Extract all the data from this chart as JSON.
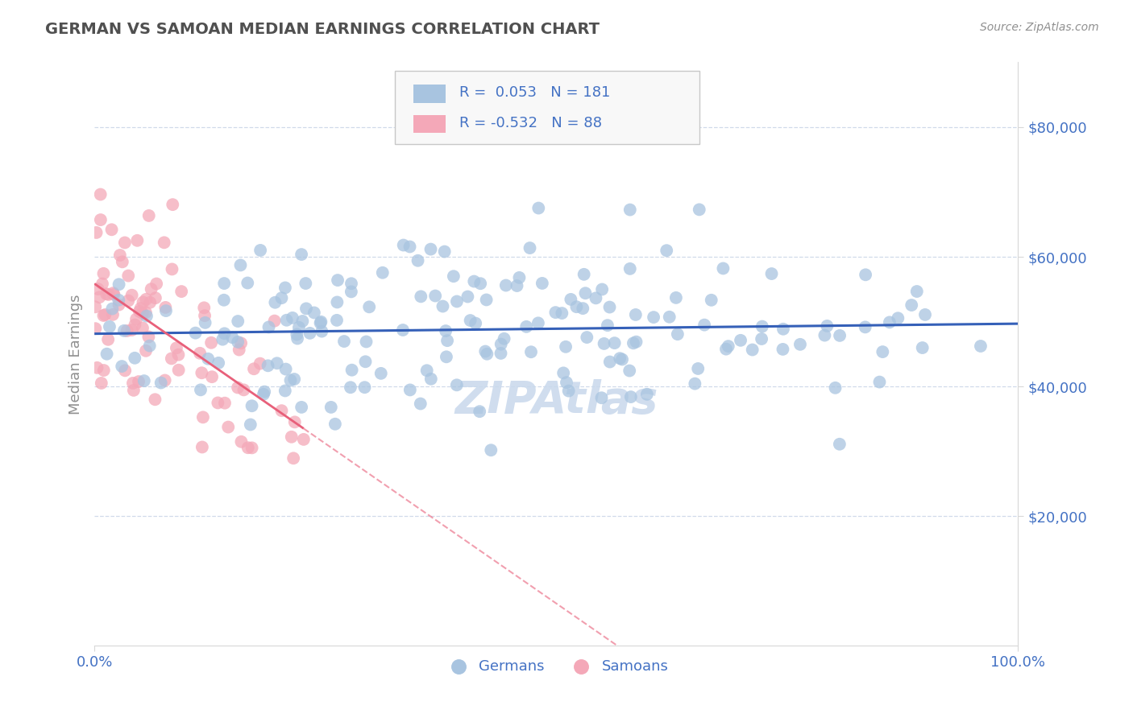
{
  "title": "GERMAN VS SAMOAN MEDIAN EARNINGS CORRELATION CHART",
  "source_text": "Source: ZipAtlas.com",
  "ylabel": "Median Earnings",
  "xlim": [
    0.0,
    1.0
  ],
  "ylim": [
    0,
    90000
  ],
  "yticks": [
    20000,
    40000,
    60000,
    80000
  ],
  "ytick_labels": [
    "$20,000",
    "$40,000",
    "$60,000",
    "$80,000"
  ],
  "xtick_labels": [
    "0.0%",
    "100.0%"
  ],
  "german_R": 0.053,
  "german_N": 181,
  "samoan_R": -0.532,
  "samoan_N": 88,
  "german_color": "#a8c4e0",
  "samoan_color": "#f4a8b8",
  "german_line_color": "#3560b8",
  "samoan_line_color": "#e8607a",
  "title_color": "#505050",
  "axis_label_color": "#909090",
  "tick_color": "#4472c4",
  "watermark_color": "#c8d8ec",
  "background_color": "#ffffff",
  "legend_text_color": "#4472c4",
  "grid_color": "#d0daea",
  "seed": 42
}
